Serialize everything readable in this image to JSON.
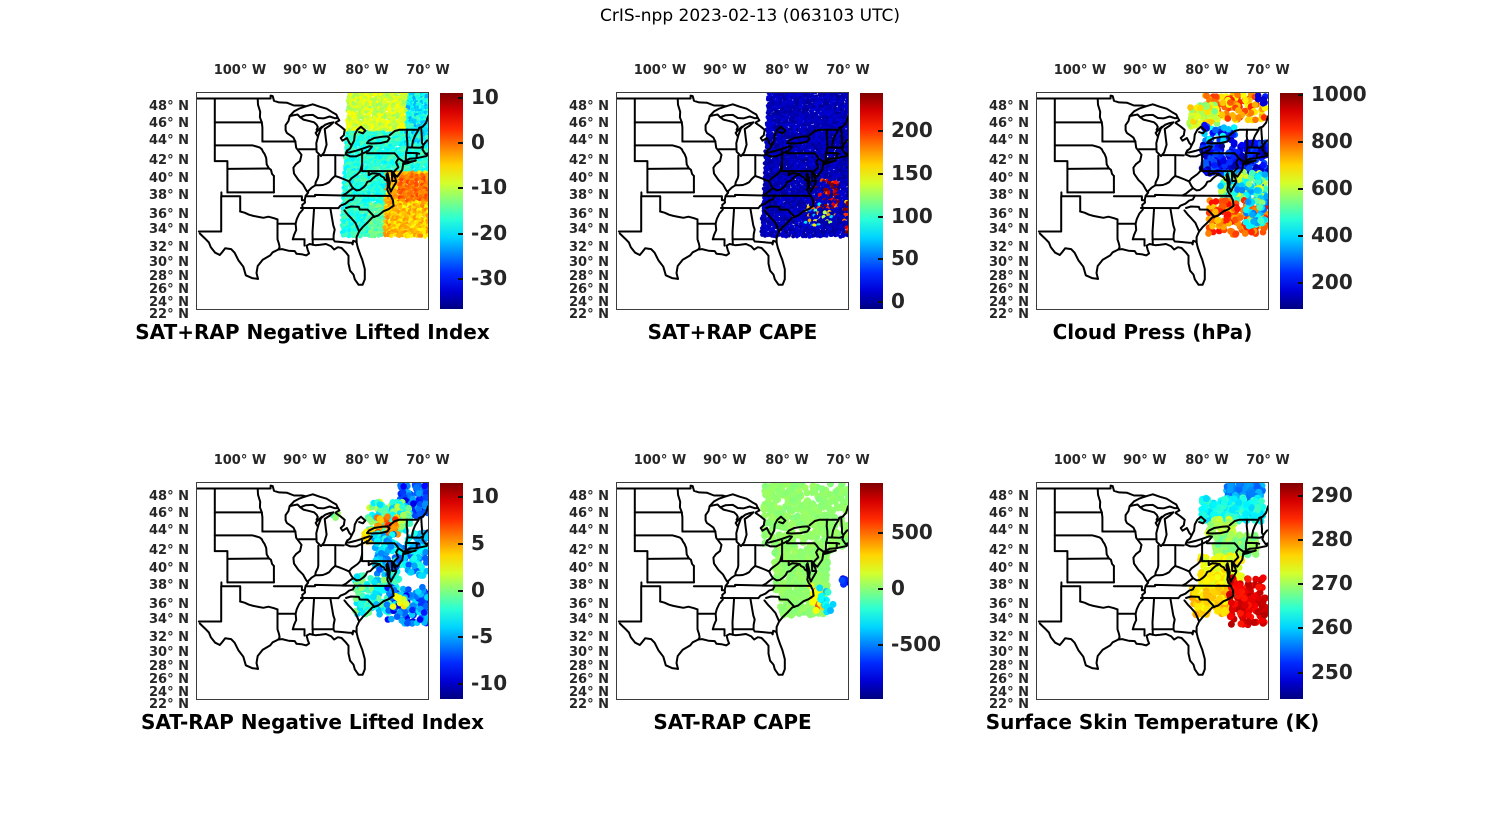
{
  "figure": {
    "title": "CrIS-npp 2023-02-13 (063103 UTC)",
    "background": "#ffffff",
    "text_color": "#262626",
    "colormap": "jet"
  },
  "geo": {
    "lon_range": [
      -106.9,
      -70.0
    ],
    "lat_range": [
      22.1,
      49.7
    ],
    "lon_ticks": [
      {
        "label": "100° W",
        "f": 0.186
      },
      {
        "label": "90° W",
        "f": 0.467
      },
      {
        "label": "80° W",
        "f": 0.736
      },
      {
        "label": "70° W",
        "f": 1.0
      }
    ],
    "lat_ticks": [
      {
        "label": "48° N",
        "f": 0.065
      },
      {
        "label": "46° N",
        "f": 0.144
      },
      {
        "label": "44° N",
        "f": 0.223
      },
      {
        "label": "42° N",
        "f": 0.316
      },
      {
        "label": "40° N",
        "f": 0.4
      },
      {
        "label": "38° N",
        "f": 0.479
      },
      {
        "label": "36° N",
        "f": 0.563
      },
      {
        "label": "34° N",
        "f": 0.633
      },
      {
        "label": "32° N",
        "f": 0.716
      },
      {
        "label": "30° N",
        "f": 0.786
      },
      {
        "label": "28° N",
        "f": 0.851
      },
      {
        "label": "26° N",
        "f": 0.912
      },
      {
        "label": "24° N",
        "f": 0.972
      },
      {
        "label": "22° N",
        "f": 1.028
      }
    ]
  },
  "chart_data": [
    {
      "id": "sat-plus-rap-negative-lifted-index",
      "type": "swath-map",
      "title": "SAT+RAP Negative Lifted Index",
      "colorbar": {
        "vmin": -36.5,
        "vmax": 11,
        "ticks": [
          {
            "label": "10",
            "value": 10
          },
          {
            "label": "0",
            "value": 0
          },
          {
            "label": "-10",
            "value": -10
          },
          {
            "label": "-20",
            "value": -20
          },
          {
            "label": "-30",
            "value": -30
          }
        ]
      },
      "swath": {
        "lon": [
          -83.2,
          -69.6
        ],
        "lat": [
          31.3,
          49.7
        ],
        "shear": 0.06
      },
      "clusters": [
        {
          "lon": [
            -74.8,
            -69.6
          ],
          "lat": [
            35.8,
            39.2
          ],
          "value": 0,
          "spread": 2.5
        },
        {
          "lon": [
            -76.5,
            -69.6
          ],
          "lat": [
            31.3,
            39.5
          ],
          "value": -4,
          "spread": 3
        },
        {
          "lon": [
            -79.2,
            -76.5
          ],
          "lat": [
            31.3,
            35.5
          ],
          "value": -14,
          "spread": 2.5
        },
        {
          "lon": [
            -73.8,
            -69.6
          ],
          "lat": [
            43.0,
            49.7
          ],
          "value": -19,
          "spread": 4
        },
        {
          "lon": [
            -83.2,
            -73.8
          ],
          "lat": [
            44.8,
            49.7
          ],
          "value": -9,
          "spread": 2.5
        },
        {
          "lon": [
            -83.2,
            -69.6
          ],
          "lat": [
            31.3,
            49.7
          ],
          "value": -17,
          "spread": 2.5
        }
      ]
    },
    {
      "id": "sat-plus-rap-cape",
      "type": "swath-map",
      "title": "SAT+RAP CAPE",
      "colorbar": {
        "vmin": -8,
        "vmax": 245,
        "ticks": [
          {
            "label": "200",
            "value": 200
          },
          {
            "label": "150",
            "value": 150
          },
          {
            "label": "100",
            "value": 100
          },
          {
            "label": "50",
            "value": 50
          },
          {
            "label": "0",
            "value": 0
          }
        ]
      },
      "swath": {
        "lon": [
          -83.2,
          -69.6
        ],
        "lat": [
          31.3,
          49.7
        ],
        "shear": 0.06
      },
      "clusters": [
        {
          "lon": [
            -74.9,
            -71.2
          ],
          "lat": [
            34.8,
            38.8
          ],
          "value": 250,
          "spread": 60,
          "p": 0.45
        },
        {
          "lon": [
            -76.8,
            -71.5
          ],
          "lat": [
            32.6,
            35.4
          ],
          "value": 120,
          "spread": 70,
          "p": 0.22
        },
        {
          "lon": [
            -70.4,
            -69.6
          ],
          "lat": [
            31.5,
            36.0
          ],
          "value": 220,
          "spread": 60,
          "p": 0.5
        },
        {
          "lon": [
            -83.2,
            -69.6
          ],
          "lat": [
            31.3,
            49.7
          ],
          "value": 6,
          "spread": 9
        }
      ]
    },
    {
      "id": "cloud-press-hpa",
      "type": "scatter-map",
      "title": "Cloud Press (hPa)",
      "dot": 3.3,
      "colorbar": {
        "vmin": 90,
        "vmax": 1010,
        "ticks": [
          {
            "label": "1000",
            "value": 1000
          },
          {
            "label": "800",
            "value": 800
          },
          {
            "label": "600",
            "value": 600
          },
          {
            "label": "400",
            "value": 400
          },
          {
            "label": "200",
            "value": 200
          }
        ]
      },
      "clusters": [
        {
          "lon": [
            -80.2,
            -70.4
          ],
          "lat": [
            46.2,
            49.5
          ],
          "n": 120,
          "value": 760,
          "spread": 110
        },
        {
          "lon": [
            -82.6,
            -78.0
          ],
          "lat": [
            45.3,
            48.2
          ],
          "n": 55,
          "value": 630,
          "spread": 90
        },
        {
          "lon": [
            -71.6,
            -70.2
          ],
          "lat": [
            48.2,
            49.4
          ],
          "n": 7,
          "value": 180,
          "spread": 60
        },
        {
          "lon": [
            -80.2,
            -75.2
          ],
          "lat": [
            43.4,
            45.6
          ],
          "n": 40,
          "value": 300,
          "spread": 150
        },
        {
          "lon": [
            -80.6,
            -70.2
          ],
          "lat": [
            39.3,
            43.4
          ],
          "n": 210,
          "value": 210,
          "spread": 90
        },
        {
          "lon": [
            -77.6,
            -70.2
          ],
          "lat": [
            35.8,
            39.6
          ],
          "n": 140,
          "value": 480,
          "spread": 170
        },
        {
          "lon": [
            -79.6,
            -70.2
          ],
          "lat": [
            31.6,
            36.0
          ],
          "n": 150,
          "value": 800,
          "spread": 90
        },
        {
          "lon": [
            -73.6,
            -70.2
          ],
          "lat": [
            32.6,
            36.2
          ],
          "n": 35,
          "value": 430,
          "spread": 130
        }
      ]
    },
    {
      "id": "sat-minus-rap-negative-lifted-index",
      "type": "scatter-map",
      "title": "SAT-RAP Negative Lifted Index",
      "dot": 3.3,
      "colorbar": {
        "vmin": -11.6,
        "vmax": 11.5,
        "ticks": [
          {
            "label": "10",
            "value": 10
          },
          {
            "label": "5",
            "value": 5
          },
          {
            "label": "0",
            "value": 0
          },
          {
            "label": "-5",
            "value": -5
          },
          {
            "label": "-10",
            "value": -10
          }
        ]
      },
      "clusters": [
        {
          "lon": [
            -74.6,
            -69.9
          ],
          "lat": [
            45.4,
            49.5
          ],
          "n": 110,
          "value": -7,
          "spread": 2.5
        },
        {
          "lon": [
            -79.6,
            -72.8
          ],
          "lat": [
            43.6,
            47.3
          ],
          "n": 150,
          "value": -1,
          "spread": 3.2
        },
        {
          "lon": [
            -78.2,
            -74.8
          ],
          "lat": [
            43.1,
            45.4
          ],
          "n": 30,
          "value": 6,
          "spread": 2
        },
        {
          "lon": [
            -80.4,
            -76.4
          ],
          "lat": [
            42.1,
            43.7
          ],
          "n": 18,
          "value": 5,
          "spread": 3
        },
        {
          "lon": [
            -78.6,
            -70.0
          ],
          "lat": [
            37.8,
            43.4
          ],
          "n": 160,
          "value": -4.5,
          "spread": 2.6
        },
        {
          "lon": [
            -81.6,
            -74.4
          ],
          "lat": [
            32.8,
            37.9
          ],
          "n": 140,
          "value": -2,
          "spread": 2.6
        },
        {
          "lon": [
            -76.6,
            -70.0
          ],
          "lat": [
            31.7,
            36.4
          ],
          "n": 100,
          "value": -6.5,
          "spread": 3
        },
        {
          "lon": [
            -75.6,
            -73.4
          ],
          "lat": [
            33.7,
            35.3
          ],
          "n": 10,
          "value": 3,
          "spread": 1.8
        },
        {
          "lon": [
            -85.4,
            -84.2
          ],
          "lat": [
            45.0,
            46.0
          ],
          "n": 3,
          "value": 0,
          "spread": 1.5
        }
      ]
    },
    {
      "id": "sat-minus-rap-cape",
      "type": "scatter-map",
      "title": "SAT-RAP CAPE",
      "dot": 3.5,
      "colorbar": {
        "vmin": -980,
        "vmax": 940,
        "ticks": [
          {
            "label": "500",
            "value": 500
          },
          {
            "label": "0",
            "value": 0
          },
          {
            "label": "-500",
            "value": -500
          }
        ]
      },
      "clusters": [
        {
          "lon": [
            -83.5,
            -69.9
          ],
          "lat": [
            41.0,
            49.6
          ],
          "n": 380,
          "value": 15,
          "spread": 25
        },
        {
          "lon": [
            -81.8,
            -73.2
          ],
          "lat": [
            35.8,
            41.0
          ],
          "n": 200,
          "value": 15,
          "spread": 25
        },
        {
          "lon": [
            -80.8,
            -73.6
          ],
          "lat": [
            32.8,
            35.8
          ],
          "n": 130,
          "value": 15,
          "spread": 25
        },
        {
          "lon": [
            -75.7,
            -74.3
          ],
          "lat": [
            34.0,
            36.4
          ],
          "n": 11,
          "value": 480,
          "spread": 130
        },
        {
          "lon": [
            -76.0,
            -73.6
          ],
          "lat": [
            33.3,
            36.7
          ],
          "n": 14,
          "value": 240,
          "spread": 90
        },
        {
          "lon": [
            -74.6,
            -73.0
          ],
          "lat": [
            34.3,
            36.3
          ],
          "n": 8,
          "value": -280,
          "spread": 120
        },
        {
          "lon": [
            -71.2,
            -70.3
          ],
          "lat": [
            36.7,
            37.6
          ],
          "n": 5,
          "value": -700,
          "spread": 120
        },
        {
          "lon": [
            -74.2,
            -72.0
          ],
          "lat": [
            33.1,
            34.3
          ],
          "n": 6,
          "value": -300,
          "spread": 140
        }
      ]
    },
    {
      "id": "surface-skin-temperature-k",
      "type": "scatter-map",
      "title": "Surface Skin Temperature (K)",
      "dot": 3.5,
      "colorbar": {
        "vmin": 244,
        "vmax": 293,
        "ticks": [
          {
            "label": "290",
            "value": 290
          },
          {
            "label": "280",
            "value": 280
          },
          {
            "label": "270",
            "value": 270
          },
          {
            "label": "260",
            "value": 260
          },
          {
            "label": "250",
            "value": 250
          }
        ]
      },
      "clusters": [
        {
          "lon": [
            -73.8,
            -71.2
          ],
          "lat": [
            48.6,
            49.6
          ],
          "n": 14,
          "value": 253,
          "spread": 2
        },
        {
          "lon": [
            -76.6,
            -70.8
          ],
          "lat": [
            47.6,
            49.6
          ],
          "n": 70,
          "value": 257,
          "spread": 2.5
        },
        {
          "lon": [
            -80.6,
            -70.8
          ],
          "lat": [
            44.8,
            47.8
          ],
          "n": 160,
          "value": 263,
          "spread": 2.5
        },
        {
          "lon": [
            -79.6,
            -75.4
          ],
          "lat": [
            42.9,
            45.1
          ],
          "n": 45,
          "value": 271,
          "spread": 2
        },
        {
          "lon": [
            -78.6,
            -71.8
          ],
          "lat": [
            40.4,
            43.1
          ],
          "n": 110,
          "value": 269,
          "spread": 2
        },
        {
          "lon": [
            -80.8,
            -74.2
          ],
          "lat": [
            36.4,
            40.4
          ],
          "n": 120,
          "value": 274.5,
          "spread": 2.2
        },
        {
          "lon": [
            -82.2,
            -75.8
          ],
          "lat": [
            32.8,
            36.4
          ],
          "n": 110,
          "value": 277,
          "spread": 2.2
        },
        {
          "lon": [
            -76.2,
            -70.2
          ],
          "lat": [
            31.6,
            37.6
          ],
          "n": 130,
          "value": 288,
          "spread": 2.5
        }
      ]
    }
  ]
}
